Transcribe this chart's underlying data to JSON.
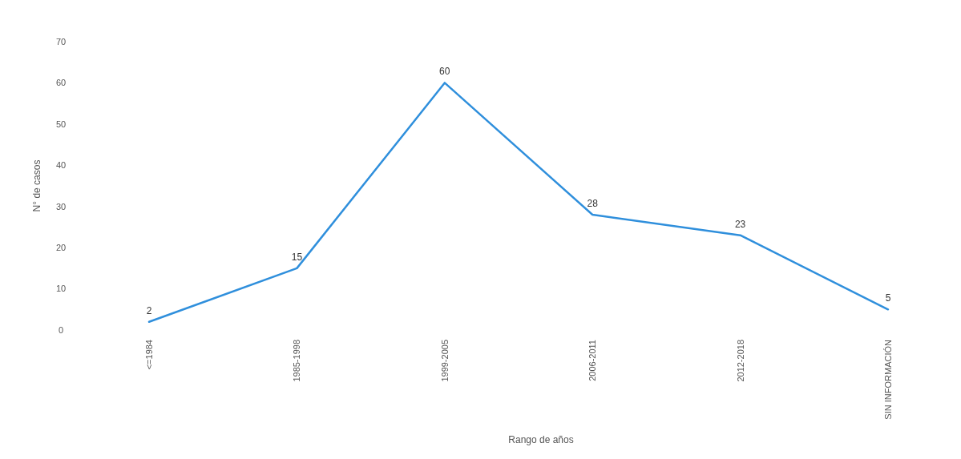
{
  "chart_data": {
    "type": "line",
    "xlabel": "Rango de años",
    "ylabel": "N° de casos",
    "categories": [
      "<=1984",
      "1985-1998",
      "1999-2005",
      "2006-2011",
      "2012-2018",
      "SIN INFORMACIÓN"
    ],
    "series": [
      {
        "color": "#2f8fdc",
        "values": [
          2,
          15,
          60,
          28,
          23,
          5
        ]
      }
    ],
    "ylim": [
      0,
      70
    ],
    "yticks": [
      0,
      10,
      20,
      30,
      40,
      50,
      60,
      70
    ],
    "data_labels": true,
    "grid": false,
    "line_style": "solid"
  }
}
